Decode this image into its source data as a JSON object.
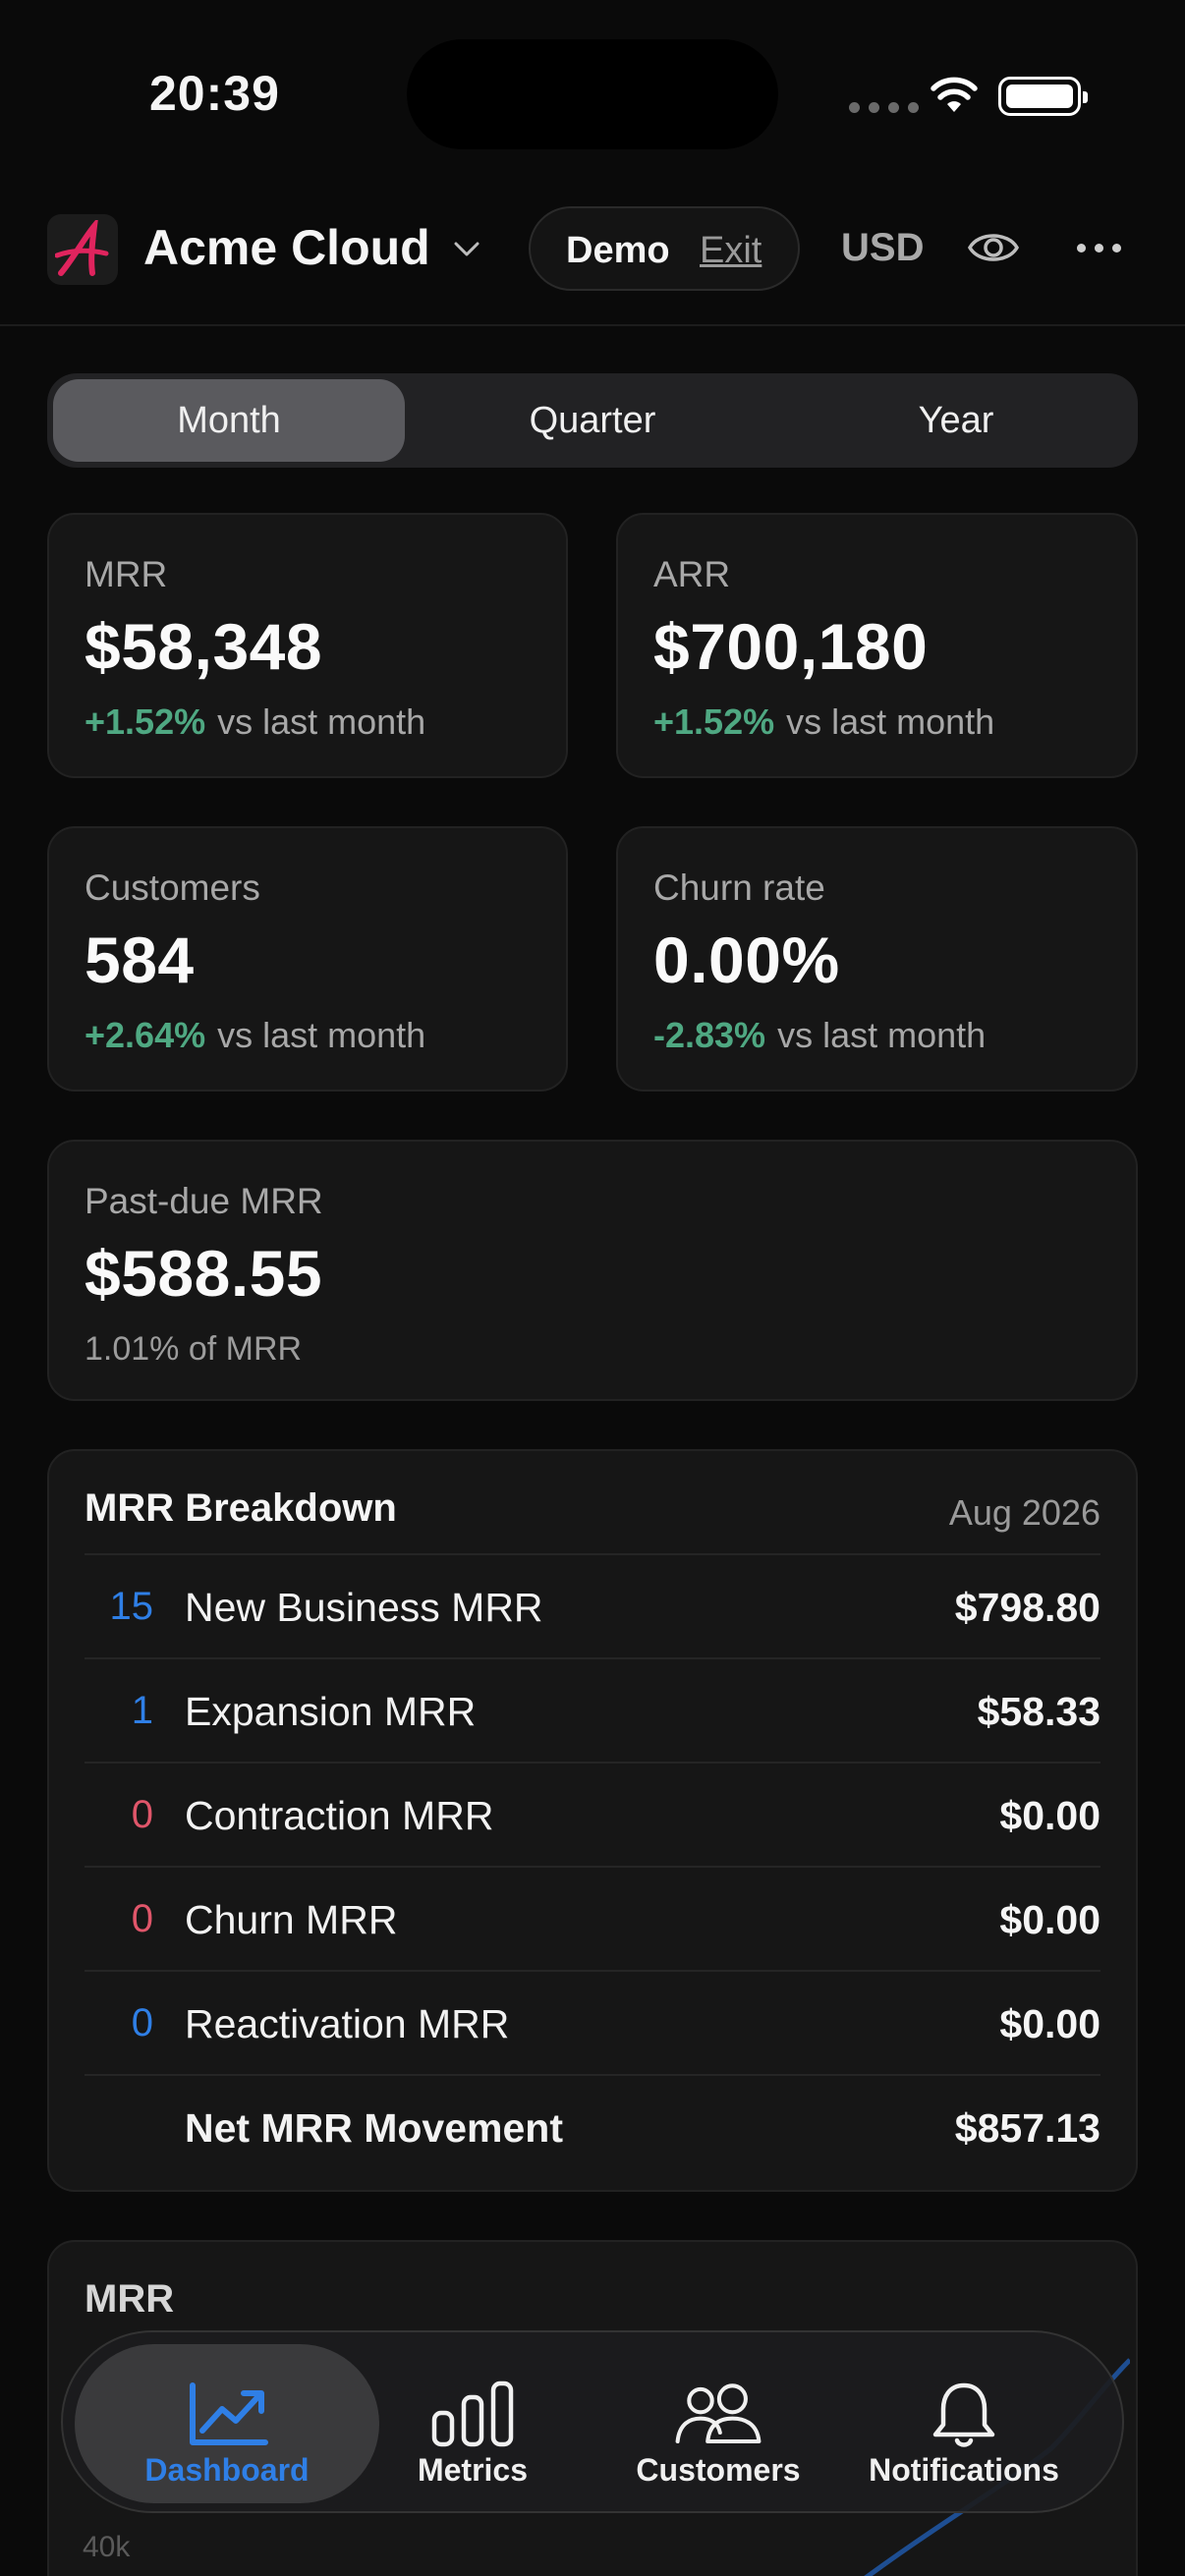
{
  "status": {
    "time": "20:39"
  },
  "header": {
    "app_name": "Acme Cloud",
    "demo_label": "Demo",
    "exit_label": "Exit",
    "currency": "USD"
  },
  "periods": [
    "Month",
    "Quarter",
    "Year"
  ],
  "active_period": "Month",
  "kpis": {
    "mrr": {
      "label": "MRR",
      "value": "$58,348",
      "delta": "+1.52%",
      "comparison": "vs last month"
    },
    "arr": {
      "label": "ARR",
      "value": "$700,180",
      "delta": "+1.52%",
      "comparison": "vs last month"
    },
    "customers": {
      "label": "Customers",
      "value": "584",
      "delta": "+2.64%",
      "comparison": "vs last month"
    },
    "churn": {
      "label": "Churn rate",
      "value": "0.00%",
      "delta": "-2.83%",
      "comparison": "vs last month"
    },
    "past_due": {
      "label": "Past-due MRR",
      "value": "$588.55",
      "sub": "1.01% of MRR"
    }
  },
  "breakdown": {
    "title": "MRR Breakdown",
    "date": "Aug 2026",
    "rows": [
      {
        "count": "15",
        "name": "New Business MRR",
        "amount": "$798.80",
        "color": "#2f7fe6"
      },
      {
        "count": "1",
        "name": "Expansion MRR",
        "amount": "$58.33",
        "color": "#2f7fe6"
      },
      {
        "count": "0",
        "name": "Contraction MRR",
        "amount": "$0.00",
        "color": "#e0566a"
      },
      {
        "count": "0",
        "name": "Churn MRR",
        "amount": "$0.00",
        "color": "#e0566a"
      },
      {
        "count": "0",
        "name": "Reactivation MRR",
        "amount": "$0.00",
        "color": "#2f7fe6"
      }
    ],
    "total_label": "Net MRR Movement",
    "total_amount": "$857.13"
  },
  "mrr_chart": {
    "title": "MRR",
    "tick": "40k"
  },
  "tabs": [
    {
      "label": "Dashboard",
      "icon": "trend-chart-icon"
    },
    {
      "label": "Metrics",
      "icon": "bar-chart-icon"
    },
    {
      "label": "Customers",
      "icon": "people-icon"
    },
    {
      "label": "Notifications",
      "icon": "bell-icon"
    }
  ],
  "colors": {
    "accent": "#2f7fe6",
    "positive": "#4fa882",
    "negative": "#e0566a",
    "logo": "#e0245e"
  }
}
